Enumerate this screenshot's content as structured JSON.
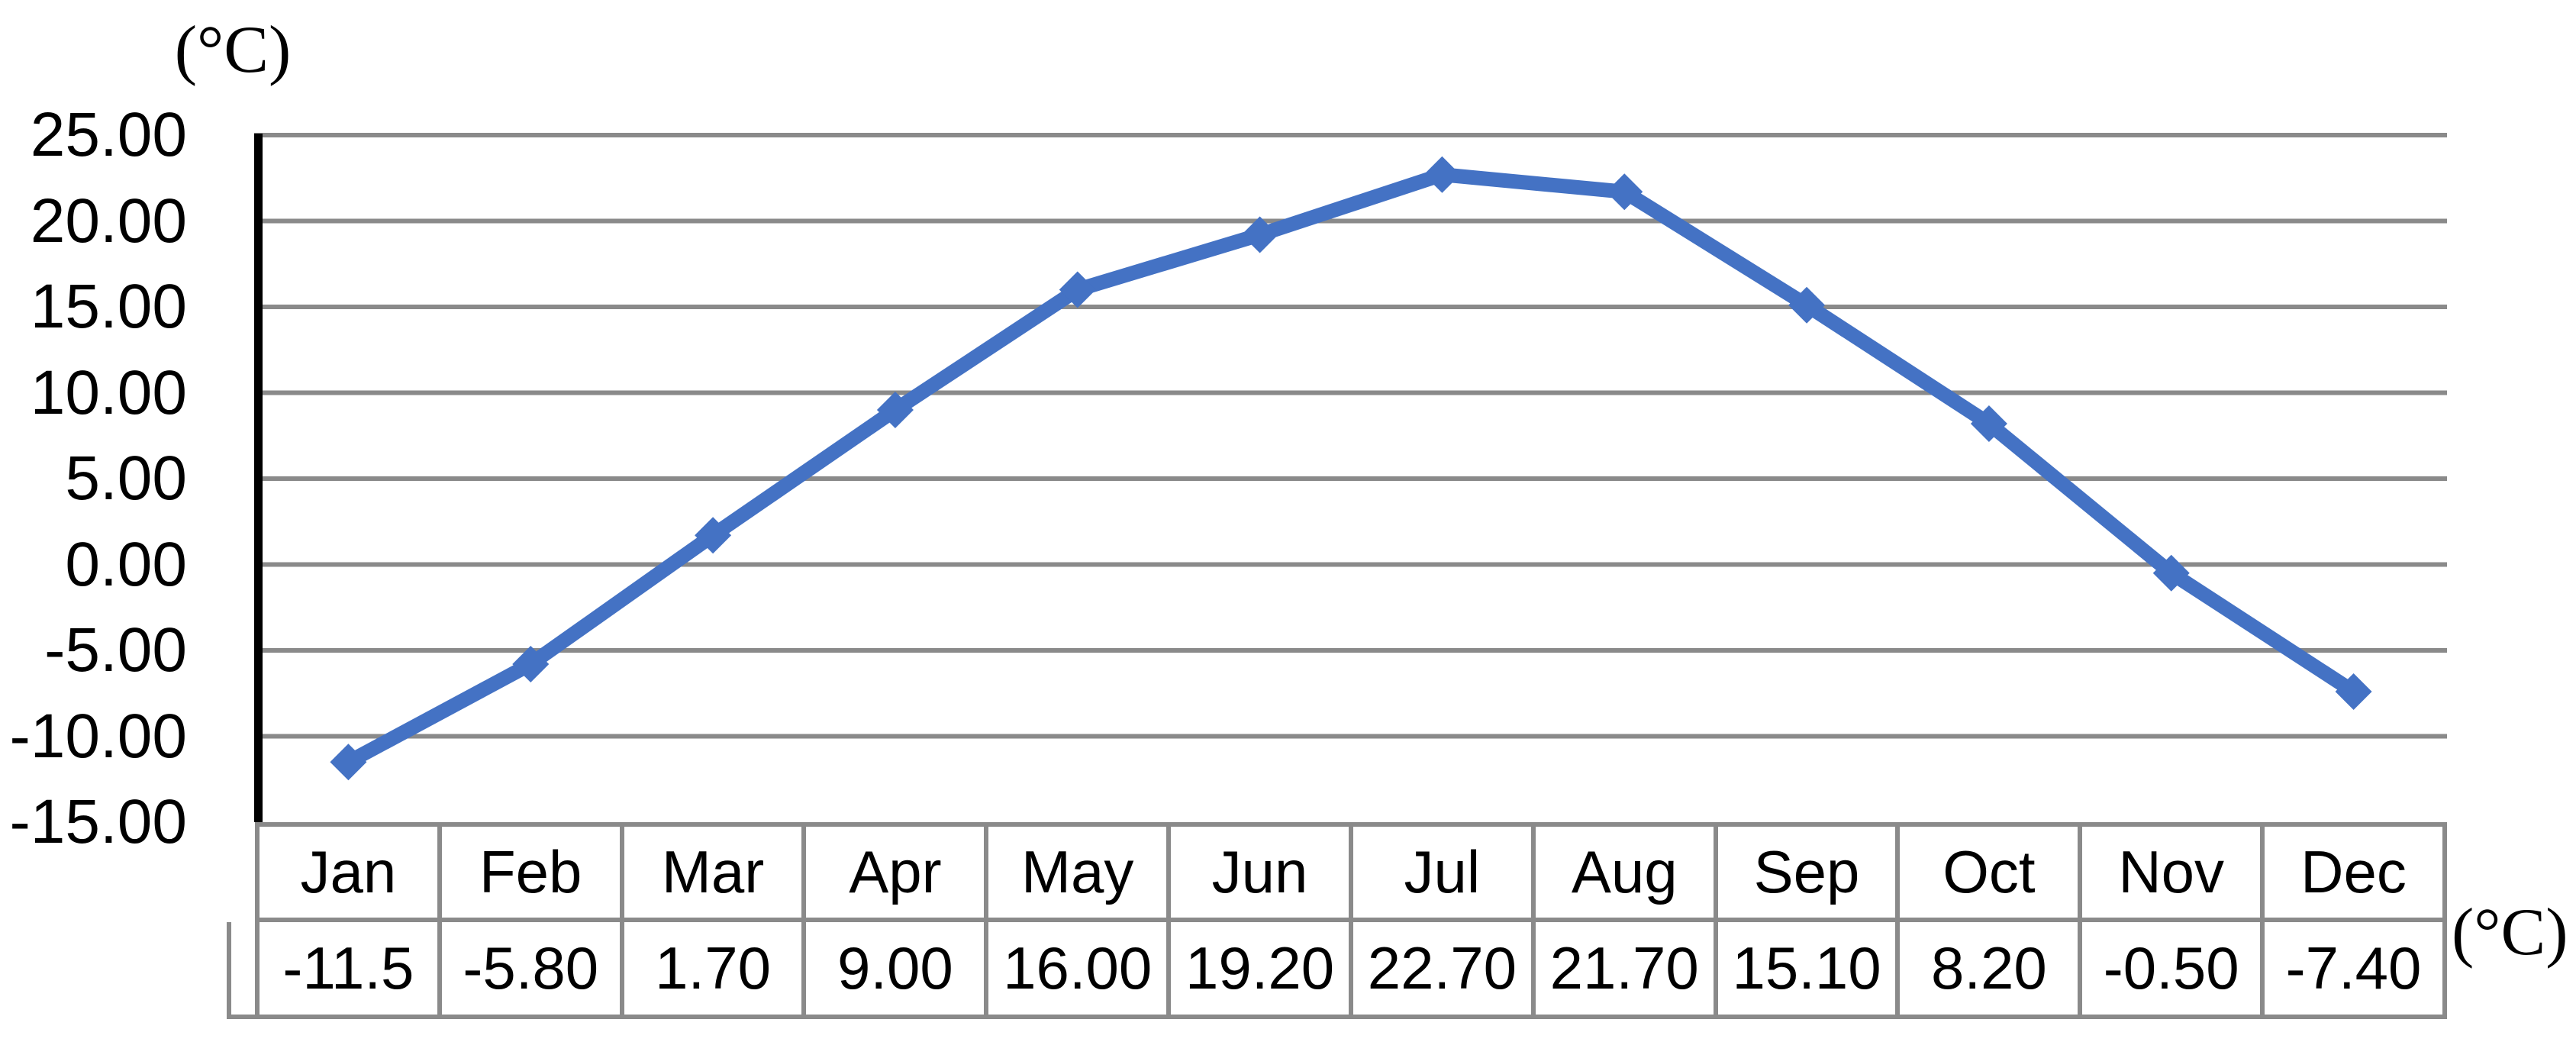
{
  "chart_data": {
    "type": "line",
    "unit_label_top": "(°C)",
    "unit_label_right": "(°C)",
    "categories": [
      "Jan",
      "Feb",
      "Mar",
      "Apr",
      "May",
      "Jun",
      "Jul",
      "Aug",
      "Sep",
      "Oct",
      "Nov",
      "Dec"
    ],
    "series": [
      {
        "values": [
          -11.5,
          -5.8,
          1.7,
          9.0,
          16.0,
          19.2,
          22.7,
          21.7,
          15.1,
          8.2,
          -0.5,
          -7.4
        ],
        "value_labels": [
          "-11.5",
          "-5.80",
          "1.70",
          "9.00",
          "16.00",
          "19.20",
          "22.70",
          "21.70",
          "15.10",
          "8.20",
          "-0.50",
          "-7.40"
        ]
      }
    ],
    "y_axis": {
      "min": -15,
      "max": 25,
      "step": 5,
      "tick_labels": [
        "25.00",
        "20.00",
        "15.00",
        "10.00",
        "5.00",
        "0.00",
        "-5.00",
        "-10.00",
        "-15.00"
      ]
    },
    "legend": "none",
    "grid": true,
    "marker_style": "diamond",
    "colors": {
      "line": "#4472C4",
      "marker": "#4472C4",
      "gridline": "#8A8A8A",
      "axis": "#000000",
      "table_border": "#8A8A8A",
      "text": "#000000",
      "background": "#FFFFFF"
    }
  }
}
